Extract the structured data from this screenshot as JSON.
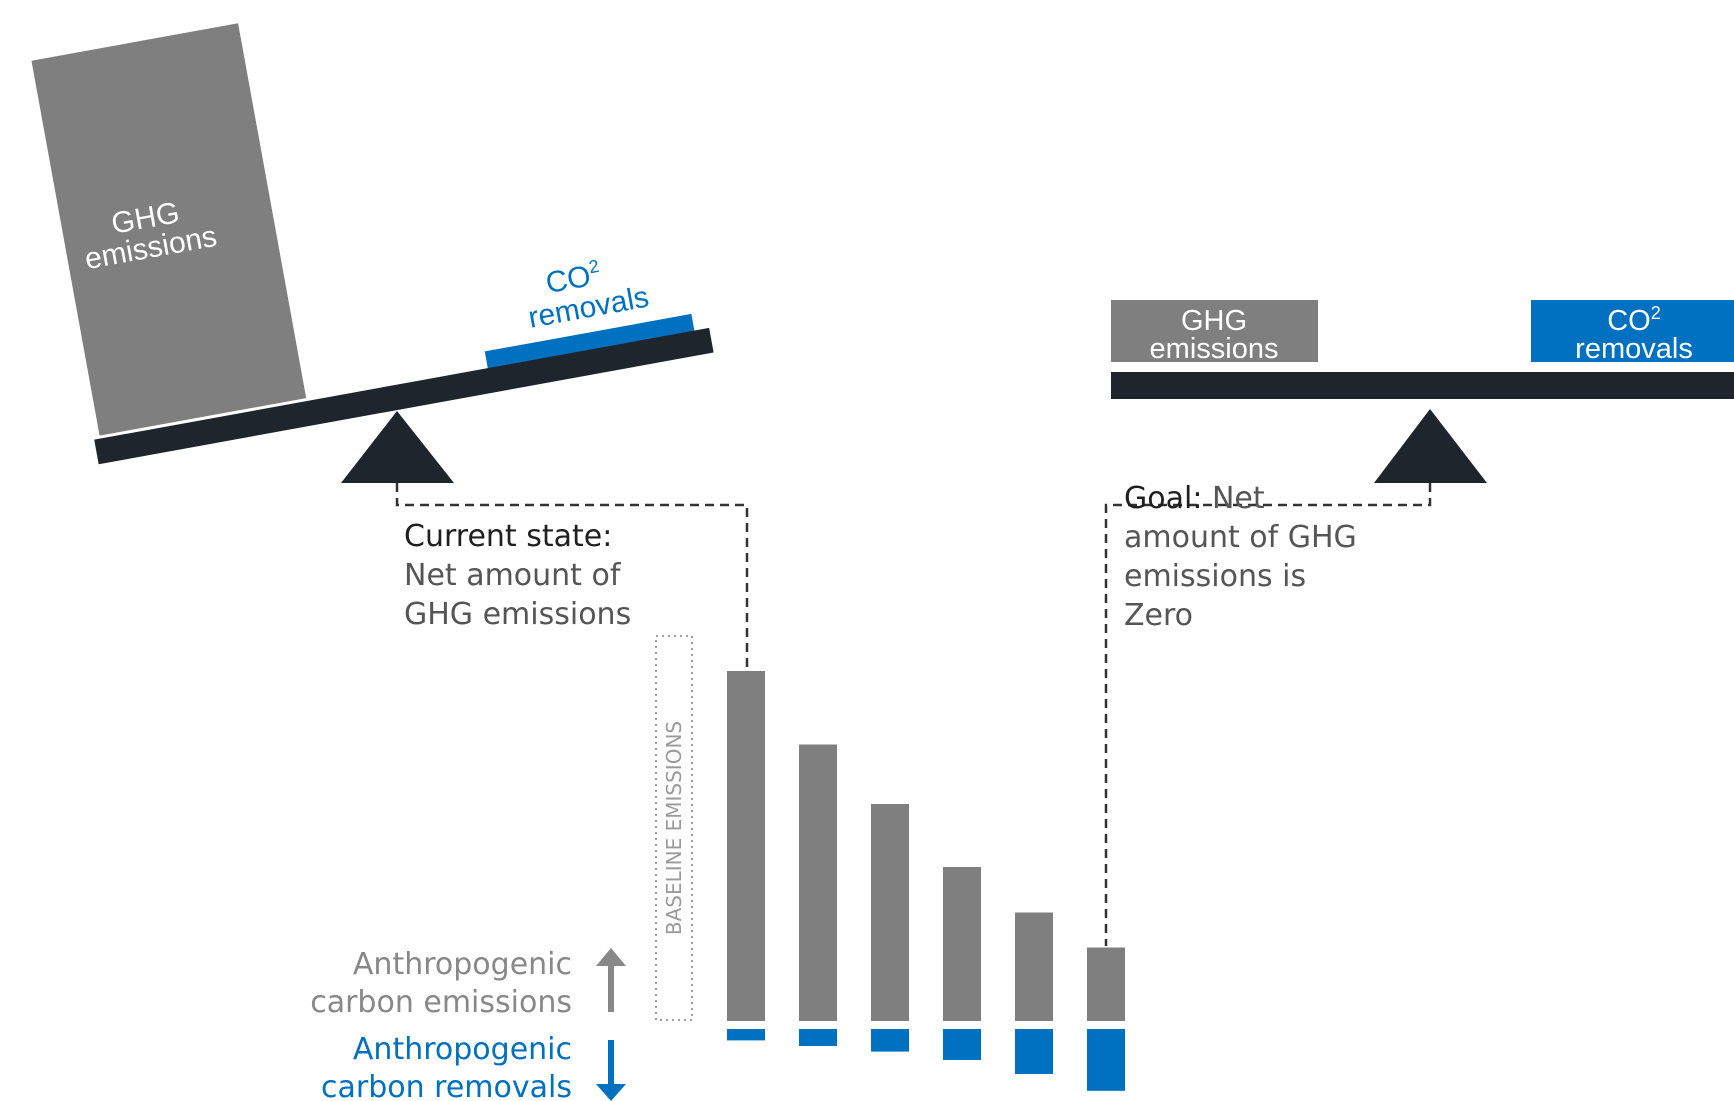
{
  "colors": {
    "emissions_gray": "#7f7f7f",
    "removals_blue": "#0070c0",
    "beam_dark": "#1f252d",
    "white": "#ffffff",
    "legend_gray": "#888888",
    "dots_gray": "#a0a0a0"
  },
  "left_scale": {
    "emissions_line1": "GHG",
    "emissions_line2": "emissions",
    "removals_line1": "CO",
    "removals_sup": "2",
    "removals_line2": "removals"
  },
  "right_scale": {
    "emissions_line1": "GHG",
    "emissions_line2": "emissions",
    "removals_line1": "CO",
    "removals_sup": "2",
    "removals_line2": "removals"
  },
  "current_state": {
    "label": "Current state:",
    "line1": "Net amount of",
    "line2": "GHG emissions"
  },
  "goal": {
    "label": "Goal:",
    "line1_rest": " Net",
    "line2": "amount of GHG",
    "line3": "emissions is",
    "line4": "Zero"
  },
  "baseline": {
    "label": "BASELINE EMISSIONS"
  },
  "legend": {
    "emissions_line1": "Anthropogenic",
    "emissions_line2": "carbon emissions",
    "removals_line1": "Anthropogenic",
    "removals_line2": "carbon removals"
  },
  "chart_data": {
    "type": "bar",
    "series": [
      {
        "name": "Anthropogenic carbon emissions",
        "values": [
          100,
          79,
          62,
          44,
          31,
          21
        ]
      },
      {
        "name": "Anthropogenic carbon removals",
        "values": [
          3,
          5,
          7,
          10,
          15,
          21
        ]
      }
    ]
  }
}
